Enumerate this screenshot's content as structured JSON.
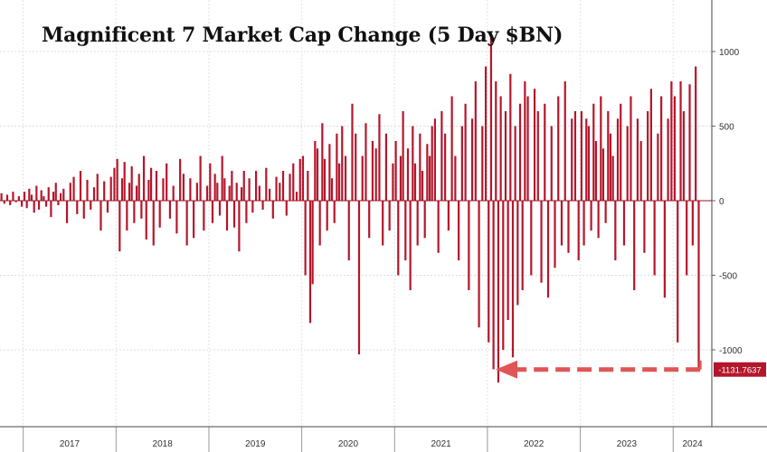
{
  "chart_data": {
    "type": "bar",
    "title": "Magnificent 7 Market Cap Change (5 Day $BN)",
    "xlabel": "",
    "ylabel": "",
    "ylim": [
      -1500,
      1400
    ],
    "y_ticks": [
      1000,
      500,
      0,
      -500,
      -1000
    ],
    "y_tick_labels": [
      "1000",
      "500",
      "0",
      "-500",
      "-1000"
    ],
    "x_range": [
      "2016-10",
      "2024-06"
    ],
    "year_labels": [
      "2017",
      "2018",
      "2019",
      "2020",
      "2021",
      "2022",
      "2023",
      "2024"
    ],
    "grid": true,
    "bar_color": "#b5162b",
    "annotation": {
      "value": -1131.7637,
      "label": "-1131.7637",
      "date": "2024-04",
      "color": "#e05555"
    },
    "series": [
      {
        "values_by_period": [
          {
            "period": "2016-10",
            "values": [
              50,
              -20,
              40,
              -30,
              60,
              -10,
              30,
              -40
            ]
          },
          {
            "period": "2017-01",
            "values": [
              60,
              -50,
              80,
              40,
              -80,
              100,
              -60,
              70,
              30,
              -40,
              90,
              -110,
              60,
              120,
              -30,
              50
            ]
          },
          {
            "period": "2017-06",
            "values": [
              80,
              -150,
              120,
              160,
              -90,
              200,
              -120,
              140,
              -60,
              90,
              180,
              -200,
              130,
              -80,
              160,
              220
            ]
          },
          {
            "period": "2018-01",
            "values": [
              280,
              -340,
              150,
              260,
              -200,
              120,
              230,
              -150,
              100,
              180,
              -120,
              300,
              -260,
              140,
              220,
              -300
            ]
          },
          {
            "period": "2018-06",
            "values": [
              200,
              -180,
              150,
              250,
              -120,
              100,
              -220,
              280,
              180,
              -300,
              150,
              -250,
              120,
              300,
              -200,
              100
            ]
          },
          {
            "period": "2019-01",
            "values": [
              250,
              -150,
              180,
              120,
              -100,
              300,
              150,
              -200,
              100,
              200,
              -180,
              120,
              -340,
              90,
              200,
              -150
            ]
          },
          {
            "period": "2019-06",
            "values": [
              150,
              -80,
              200,
              100,
              -60,
              220,
              80,
              -120,
              160,
              120,
              200,
              -100,
              180,
              250,
              60,
              280
            ]
          },
          {
            "period": "2020-01",
            "values": [
              300,
              -500,
              200,
              -820,
              -560,
              400,
              350,
              -300,
              520,
              280,
              -200,
              380,
              150,
              -150,
              450,
              250
            ]
          },
          {
            "period": "2020-06",
            "values": [
              500,
              300,
              -400,
              650,
              450,
              -1030,
              300,
              520,
              -250,
              400,
              350,
              580,
              -300,
              450,
              -200,
              250
            ]
          },
          {
            "period": "2021-01",
            "values": [
              400,
              -500,
              300,
              600,
              -400,
              350,
              -600,
              500,
              250,
              -300,
              450,
              200,
              -250,
              380,
              300,
              500
            ]
          },
          {
            "period": "2021-06",
            "values": [
              550,
              -350,
              600,
              450,
              -200,
              700,
              300,
              -400,
              500,
              650,
              -600,
              550,
              800,
              -850,
              500,
              900
            ]
          },
          {
            "period": "2022-01",
            "values": [
              -950,
              1100,
              -1130,
              800,
              -1220,
              700,
              -1000,
              600,
              -800,
              850,
              -1050,
              500,
              -700,
              650,
              -600,
              800
            ]
          },
          {
            "period": "2022-06",
            "values": [
              700,
              -500,
              750,
              600,
              -550,
              650,
              -650,
              500,
              -450,
              700,
              -300,
              800,
              -350,
              550,
              600,
              -400
            ]
          },
          {
            "period": "2023-01",
            "values": [
              600,
              -300,
              550,
              500,
              -200,
              650,
              400,
              -250,
              700,
              350,
              -150,
              600,
              450,
              300,
              -400,
              550
            ]
          },
          {
            "period": "2023-06",
            "values": [
              650,
              -300,
              500,
              700,
              -600,
              550,
              400,
              -350,
              600,
              750,
              -500,
              450,
              700,
              -650,
              550,
              800
            ]
          },
          {
            "period": "2024-01",
            "values": [
              700,
              -950,
              800,
              600,
              -500,
              780,
              -300,
              900,
              -1131.7637
            ]
          }
        ]
      }
    ]
  }
}
